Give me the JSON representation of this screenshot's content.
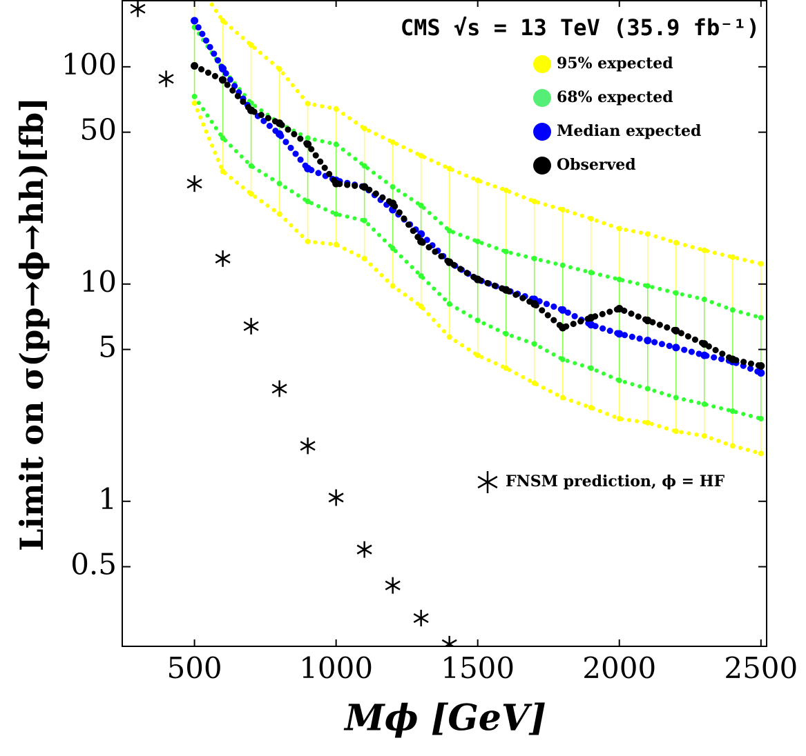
{
  "chart_data": {
    "type": "line",
    "title": "CMS √s = 13 TeV (35.9 fb⁻¹)",
    "x_label": "Mϕ [GeV]",
    "y_label": "Limit on σ(pp→ϕ→hh)[fb]",
    "x": [
      300,
      400,
      500,
      600,
      700,
      800,
      900,
      1000,
      1100,
      1200,
      1300,
      1400,
      1500,
      1600,
      1700,
      1800,
      1900,
      2000,
      2100,
      2200,
      2300,
      2400,
      2500
    ],
    "series": [
      {
        "name": "95% expected",
        "role": "band-upper",
        "color": "#ffff00",
        "values": [
          null,
          null,
          253,
          163,
          126,
          97.7,
          67.7,
          64,
          52,
          45,
          39,
          34,
          30,
          27,
          24,
          22,
          20,
          18,
          17,
          15.5,
          14.3,
          13.3,
          12.4
        ]
      },
      {
        "name": "95% expected",
        "role": "band-lower",
        "color": "#ffff00",
        "values": [
          null,
          null,
          68,
          33,
          26,
          21,
          15.7,
          15.2,
          13.1,
          9.8,
          7.9,
          5.7,
          4.7,
          4.1,
          3.5,
          3.0,
          2.7,
          2.4,
          2.3,
          2.1,
          2.0,
          1.8,
          1.66
        ]
      },
      {
        "name": "68% expected",
        "role": "band-upper",
        "color": "#33ff33",
        "values": [
          null,
          null,
          152,
          98,
          68,
          55,
          47,
          44,
          35,
          28,
          23,
          17.6,
          15.7,
          14.1,
          13.1,
          12.2,
          11.3,
          10.5,
          9.8,
          9.1,
          8.5,
          7.6,
          7.0
        ]
      },
      {
        "name": "68% expected",
        "role": "band-lower",
        "color": "#33ff33",
        "values": [
          null,
          null,
          73,
          47,
          35,
          29,
          24,
          21,
          19.6,
          14.6,
          10.9,
          8.1,
          6.8,
          5.9,
          5.3,
          4.5,
          4.1,
          3.6,
          3.3,
          3.0,
          2.8,
          2.6,
          2.4
        ]
      },
      {
        "name": "Median expected",
        "color": "#0000ff",
        "values": [
          null,
          null,
          163,
          98,
          63,
          49,
          34,
          30,
          28,
          22,
          17,
          12.6,
          10.5,
          9.4,
          8.5,
          7.6,
          6.5,
          5.9,
          5.5,
          5.1,
          4.7,
          4.4,
          3.9
        ]
      },
      {
        "name": "Observed",
        "color": "#000000",
        "values": [
          null,
          null,
          101,
          87,
          63,
          55,
          44,
          29,
          28,
          23.5,
          15.7,
          12.6,
          10.5,
          9.4,
          8.1,
          6.3,
          7.0,
          7.7,
          6.8,
          6.1,
          5.3,
          4.5,
          4.2
        ]
      },
      {
        "name": "FNSM prediction, ϕ = HF",
        "marker": "star",
        "color": "#000000",
        "values": [
          185,
          88,
          29,
          13.1,
          6.4,
          3.3,
          1.8,
          1.04,
          0.6,
          0.41,
          0.29,
          0.22,
          null,
          null,
          null,
          null,
          null,
          null,
          null,
          null,
          null,
          null,
          null
        ]
      }
    ],
    "xlim": [
      245,
      2520
    ],
    "ylim": [
      0.215,
      203
    ],
    "log_y": true,
    "xticks": [
      500,
      1000,
      1500,
      2000,
      2500
    ],
    "yticks": [
      0.5,
      1,
      5,
      10,
      50,
      100
    ]
  }
}
